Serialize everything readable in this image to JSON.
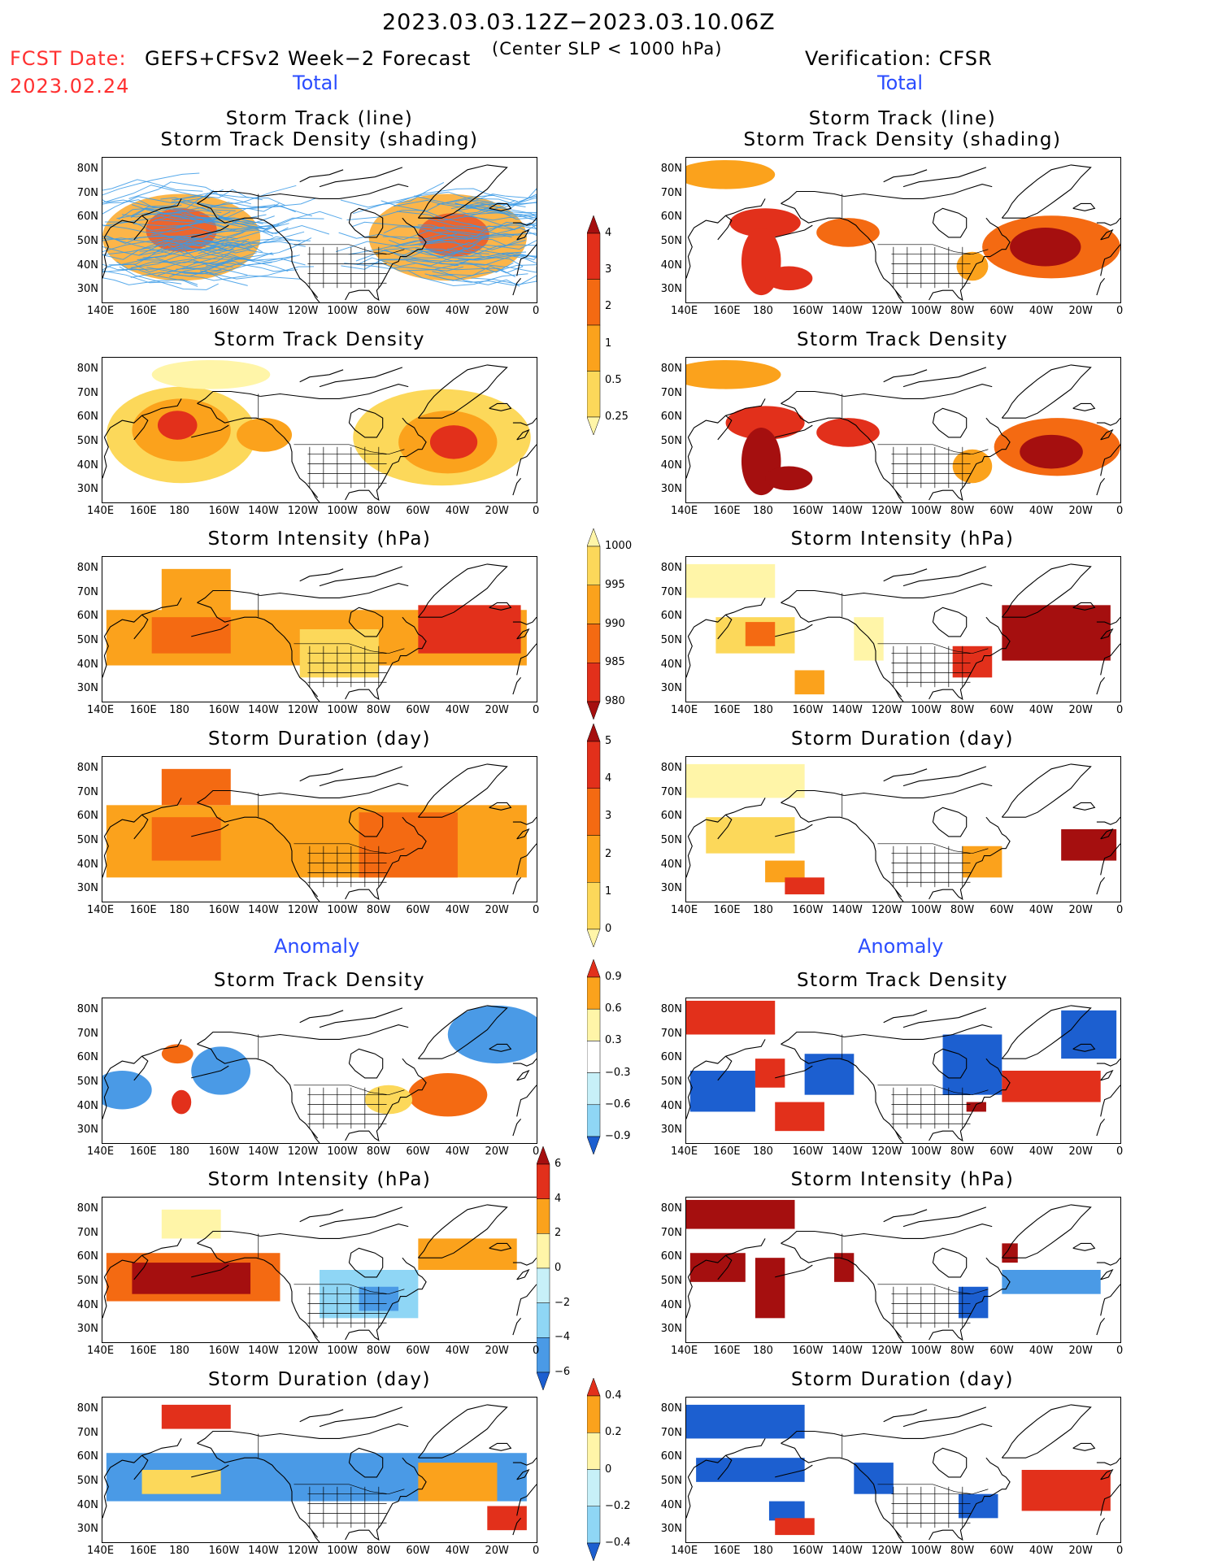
{
  "header": {
    "date_range": "2023.03.03.12Z−2023.03.10.06Z",
    "fcst_label": "FCST Date:",
    "fcst_date": "2023.02.24",
    "model": "GEFS+CFSv2 Week−2 Forecast",
    "criterion": "(Center SLP < 1000 hPa)",
    "verification": "Verification: CFSR"
  },
  "sections": {
    "total": "Total",
    "anomaly": "Anomaly"
  },
  "panel_titles": {
    "track_line": "Storm Track (line)",
    "track_shading": "Storm Track Density (shading)",
    "density": "Storm Track Density",
    "intensity": "Storm Intensity (hPa)",
    "duration": "Storm Duration (day)"
  },
  "axes": {
    "lat_labels": [
      "80N",
      "70N",
      "60N",
      "50N",
      "40N",
      "30N"
    ],
    "lon_labels": [
      "140E",
      "160E",
      "180",
      "160W",
      "140W",
      "120W",
      "100W",
      "80W",
      "60W",
      "40W",
      "20W",
      "0"
    ]
  },
  "colorbars": {
    "density_total": [
      "4",
      "3",
      "2",
      "1",
      "0.5",
      "0.25"
    ],
    "intensity_total": [
      "1000",
      "995",
      "990",
      "985",
      "980"
    ],
    "duration_total": [
      "5",
      "4",
      "3",
      "2",
      "1",
      "0"
    ],
    "density_anom": [
      "0.9",
      "0.6",
      "0.3",
      "−0.3",
      "−0.6",
      "−0.9"
    ],
    "intensity_anom": [
      "6",
      "4",
      "2",
      "0",
      "−2",
      "−4",
      "−6"
    ],
    "duration_anom": [
      "0.4",
      "0.2",
      "0",
      "−0.2",
      "−0.4"
    ]
  },
  "colors": {
    "warm": [
      "#fff5a8",
      "#fcd85a",
      "#fba21c",
      "#f46a12",
      "#e2301b",
      "#a50f0f"
    ],
    "cool": [
      "#c7f0f8",
      "#8fd6f5",
      "#4a9ae6",
      "#1c5fd0"
    ],
    "track": "#3a9ae6",
    "coast": "#000000"
  }
}
